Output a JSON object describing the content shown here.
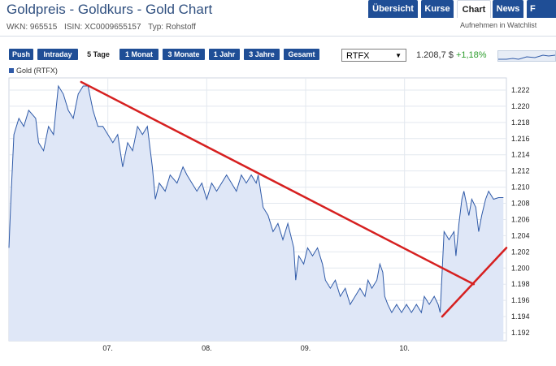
{
  "header": {
    "title": "Goldpreis - Goldkurs - Gold Chart",
    "wkn": "WKN: 965515",
    "isin": "ISIN: XC0009655157",
    "type": "Typ: Rohstoff",
    "watchlist": "Aufnehmen in Watchlist"
  },
  "tabs": [
    "Übersicht",
    "Kurse",
    "Chart",
    "News",
    "F"
  ],
  "active_tab": "Chart",
  "ranges": [
    "Push",
    "Intraday",
    "5 Tage",
    "1 Monat",
    "3 Monate",
    "1 Jahr",
    "3 Jahre",
    "Gesamt"
  ],
  "active_range": "5 Tage",
  "exchange_select": {
    "value": "RTFX"
  },
  "quote": {
    "price": "1.208,7 $",
    "change": "+1,18%"
  },
  "colors": {
    "accent": "#1f4e96",
    "line": "#2f5aa8",
    "fill": "#dfe7f7",
    "trend": "#d62020",
    "positive": "#2e9e2e"
  },
  "chart_data": {
    "type": "area",
    "series_name": "Gold (RTFX)",
    "ylim": [
      1.191,
      1.2235
    ],
    "yticks": [
      1.192,
      1.194,
      1.196,
      1.198,
      1.2,
      1.202,
      1.204,
      1.206,
      1.208,
      1.21,
      1.212,
      1.214,
      1.216,
      1.218,
      1.22,
      1.222
    ],
    "ytick_labels": [
      "1.192",
      "1.194",
      "1.196",
      "1.198",
      "1.200",
      "1.202",
      "1.204",
      "1.206",
      "1.208",
      "1.210",
      "1.212",
      "1.214",
      "1.216",
      "1.218",
      "1.220",
      "1.222"
    ],
    "xlim": [
      0,
      5.03
    ],
    "xticks": [
      1,
      2,
      3,
      4
    ],
    "xtick_labels": [
      "07.",
      "08.",
      "09.",
      "10."
    ],
    "grid": true,
    "legend": "top-left",
    "points": [
      [
        0.0,
        1.2025
      ],
      [
        0.02,
        1.2085
      ],
      [
        0.05,
        1.2165
      ],
      [
        0.1,
        1.2185
      ],
      [
        0.15,
        1.2175
      ],
      [
        0.2,
        1.2195
      ],
      [
        0.27,
        1.2185
      ],
      [
        0.3,
        1.2155
      ],
      [
        0.35,
        1.2145
      ],
      [
        0.4,
        1.2175
      ],
      [
        0.45,
        1.2165
      ],
      [
        0.5,
        1.2225
      ],
      [
        0.55,
        1.2215
      ],
      [
        0.6,
        1.2195
      ],
      [
        0.65,
        1.2185
      ],
      [
        0.7,
        1.2215
      ],
      [
        0.75,
        1.2225
      ],
      [
        0.8,
        1.2225
      ],
      [
        0.85,
        1.2195
      ],
      [
        0.9,
        1.2175
      ],
      [
        0.95,
        1.2175
      ],
      [
        1.0,
        1.2165
      ],
      [
        1.05,
        1.2155
      ],
      [
        1.1,
        1.2165
      ],
      [
        1.15,
        1.2125
      ],
      [
        1.2,
        1.2155
      ],
      [
        1.25,
        1.2145
      ],
      [
        1.3,
        1.2175
      ],
      [
        1.35,
        1.2165
      ],
      [
        1.4,
        1.2175
      ],
      [
        1.45,
        1.2125
      ],
      [
        1.48,
        1.2085
      ],
      [
        1.52,
        1.2105
      ],
      [
        1.58,
        1.2095
      ],
      [
        1.63,
        1.2115
      ],
      [
        1.7,
        1.2105
      ],
      [
        1.76,
        1.2125
      ],
      [
        1.8,
        1.2115
      ],
      [
        1.85,
        1.2105
      ],
      [
        1.9,
        1.2095
      ],
      [
        1.95,
        1.2105
      ],
      [
        2.0,
        1.2085
      ],
      [
        2.05,
        1.2105
      ],
      [
        2.1,
        1.2095
      ],
      [
        2.15,
        1.2105
      ],
      [
        2.2,
        1.2115
      ],
      [
        2.25,
        1.2105
      ],
      [
        2.3,
        1.2095
      ],
      [
        2.35,
        1.2115
      ],
      [
        2.4,
        1.2105
      ],
      [
        2.45,
        1.2115
      ],
      [
        2.5,
        1.2105
      ],
      [
        2.52,
        1.2115
      ],
      [
        2.57,
        1.2075
      ],
      [
        2.62,
        1.2065
      ],
      [
        2.67,
        1.2045
      ],
      [
        2.72,
        1.2055
      ],
      [
        2.77,
        1.2035
      ],
      [
        2.82,
        1.2055
      ],
      [
        2.88,
        1.2025
      ],
      [
        2.9,
        1.1985
      ],
      [
        2.93,
        1.2015
      ],
      [
        2.98,
        1.2005
      ],
      [
        3.02,
        1.2025
      ],
      [
        3.07,
        1.2015
      ],
      [
        3.12,
        1.2025
      ],
      [
        3.17,
        1.2005
      ],
      [
        3.2,
        1.1985
      ],
      [
        3.25,
        1.1975
      ],
      [
        3.3,
        1.1985
      ],
      [
        3.35,
        1.1965
      ],
      [
        3.4,
        1.1975
      ],
      [
        3.45,
        1.1955
      ],
      [
        3.5,
        1.1965
      ],
      [
        3.55,
        1.1975
      ],
      [
        3.6,
        1.1965
      ],
      [
        3.63,
        1.1985
      ],
      [
        3.67,
        1.1975
      ],
      [
        3.72,
        1.1985
      ],
      [
        3.75,
        1.2005
      ],
      [
        3.78,
        1.1995
      ],
      [
        3.8,
        1.1965
      ],
      [
        3.83,
        1.1955
      ],
      [
        3.87,
        1.1945
      ],
      [
        3.92,
        1.1955
      ],
      [
        3.97,
        1.1945
      ],
      [
        4.02,
        1.1955
      ],
      [
        4.07,
        1.1945
      ],
      [
        4.12,
        1.1955
      ],
      [
        4.17,
        1.1945
      ],
      [
        4.2,
        1.1965
      ],
      [
        4.25,
        1.1955
      ],
      [
        4.3,
        1.1965
      ],
      [
        4.34,
        1.1955
      ],
      [
        4.36,
        1.1945
      ],
      [
        4.38,
        1.1995
      ],
      [
        4.4,
        1.2045
      ],
      [
        4.45,
        1.2035
      ],
      [
        4.5,
        1.2045
      ],
      [
        4.52,
        1.2015
      ],
      [
        4.55,
        1.2055
      ],
      [
        4.58,
        1.2085
      ],
      [
        4.6,
        1.2095
      ],
      [
        4.65,
        1.2065
      ],
      [
        4.68,
        1.2085
      ],
      [
        4.72,
        1.2075
      ],
      [
        4.75,
        1.2045
      ],
      [
        4.78,
        1.2065
      ],
      [
        4.82,
        1.2085
      ],
      [
        4.85,
        1.2095
      ],
      [
        4.9,
        1.2085
      ],
      [
        4.95,
        1.2087
      ],
      [
        5.0,
        1.2087
      ]
    ],
    "annotations": [
      {
        "type": "trendline",
        "from": [
          0.73,
          1.223
        ],
        "to": [
          4.7,
          1.198
        ]
      },
      {
        "type": "trendline",
        "from": [
          4.38,
          1.194
        ],
        "to": [
          5.03,
          1.2025
        ]
      }
    ]
  }
}
